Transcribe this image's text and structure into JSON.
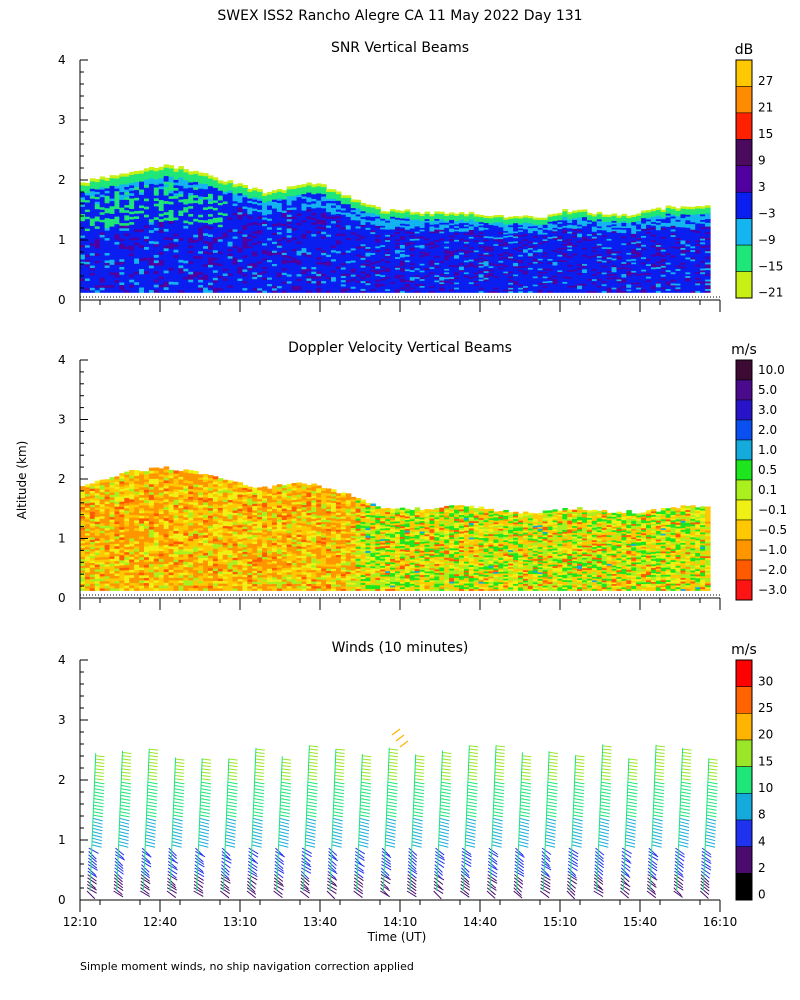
{
  "title": "SWEX ISS2 Rancho Alegre CA  11 May 2022 Day 131",
  "ylabel": "Altitude (km)",
  "xlabel": "Time (UT)",
  "footnote": "Simple moment winds, no ship navigation correction applied",
  "chart_data": [
    {
      "type": "heatmap",
      "title": "SNR Vertical Beams",
      "ylim": [
        0,
        4
      ],
      "yticks": [
        "0",
        "1",
        "2",
        "3",
        "4"
      ],
      "colorbar": {
        "unit": "dB",
        "labels": [
          "27",
          "21",
          "15",
          "9",
          "3",
          "−3",
          "−9",
          "−15",
          "−21"
        ],
        "colors": [
          "#ffc800",
          "#ff8c00",
          "#ff2000",
          "#4a0a5e",
          "#5000a0",
          "#0a1ef0",
          "#14b4f0",
          "#1ee678",
          "#c8f014"
        ]
      },
      "top_km": [
        1.95,
        2.05,
        2.1,
        2.15,
        2.25,
        2.2,
        2.1,
        2.0,
        1.9,
        1.8,
        1.85,
        1.95,
        1.9,
        1.75,
        1.6,
        1.5,
        1.5,
        1.45,
        1.45,
        1.45,
        1.42,
        1.4,
        1.4,
        1.4,
        1.5,
        1.48,
        1.42,
        1.42,
        1.48,
        1.55,
        1.55,
        1.6
      ]
    },
    {
      "type": "heatmap",
      "title": "Doppler Velocity Vertical Beams",
      "ylim": [
        0,
        4
      ],
      "yticks": [
        "0",
        "1",
        "2",
        "3",
        "4"
      ],
      "colorbar": {
        "unit": "m/s",
        "labels": [
          "10.0",
          "5.0",
          "3.0",
          "2.0",
          "1.0",
          "0.5",
          "0.1",
          "−0.1",
          "−0.5",
          "−1.0",
          "−2.0",
          "−3.0"
        ],
        "colors": [
          "#3c0a32",
          "#4a0a8c",
          "#2814c8",
          "#0a50f0",
          "#14aadc",
          "#1ee61e",
          "#aaf01e",
          "#f0f014",
          "#ffc800",
          "#ff9600",
          "#ff5a00",
          "#ff1414"
        ]
      },
      "top_km": [
        1.9,
        2.0,
        2.1,
        2.15,
        2.2,
        2.15,
        2.1,
        2.0,
        1.9,
        1.85,
        1.9,
        1.95,
        1.85,
        1.75,
        1.65,
        1.5,
        1.5,
        1.5,
        1.55,
        1.55,
        1.5,
        1.45,
        1.45,
        1.45,
        1.5,
        1.5,
        1.45,
        1.45,
        1.45,
        1.5,
        1.55,
        1.55
      ]
    },
    {
      "type": "scatter",
      "title": "Winds (10 minutes)",
      "ylim": [
        0,
        4
      ],
      "yticks": [
        "0",
        "1",
        "2",
        "3",
        "4"
      ],
      "xticks": [
        "12:10",
        "12:40",
        "13:10",
        "13:40",
        "14:10",
        "14:40",
        "15:10",
        "15:40",
        "16:10"
      ],
      "xrange_hours": [
        12.1667,
        16.1667
      ],
      "profile_times": [
        "12:10",
        "12:20",
        "12:30",
        "12:40",
        "12:50",
        "13:00",
        "13:10",
        "13:20",
        "13:30",
        "13:40",
        "13:50",
        "14:00",
        "14:10",
        "14:20",
        "14:30",
        "14:40",
        "14:50",
        "15:00",
        "15:10",
        "15:20",
        "15:30",
        "15:40",
        "15:50",
        "16:00"
      ],
      "wind_speed_low_ms": 4,
      "wind_speed_high_ms": 14,
      "colorbar": {
        "unit": "m/s",
        "labels": [
          "30",
          "25",
          "20",
          "15",
          "10",
          "8",
          "4",
          "2",
          "0"
        ],
        "colors": [
          "#ff0000",
          "#ff6400",
          "#ffb400",
          "#9be628",
          "#1ee678",
          "#14aadc",
          "#1e32f0",
          "#4a0a6e",
          "#000000"
        ]
      }
    }
  ]
}
